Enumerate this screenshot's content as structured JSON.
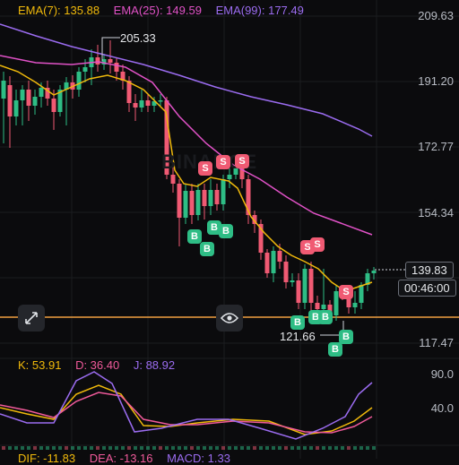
{
  "legend": {
    "ema7": "EMA(7): 135.88",
    "ema25": "EMA(25): 149.59",
    "ema99": "EMA(99): 177.49"
  },
  "price_axis": [
    "209.63",
    "191.20",
    "172.77",
    "154.34",
    "117.47"
  ],
  "current_price": {
    "price": "139.83",
    "countdown": "00:46:00"
  },
  "high_low": {
    "high": "205.33",
    "low": "121.66"
  },
  "watermark": "BINANCE",
  "kdj": {
    "k": "K: 53.91",
    "d": "D: 36.40",
    "j": "J: 88.92",
    "axis": [
      "90.0",
      "40.0"
    ]
  },
  "macd": {
    "dif": "DIF: -11.83",
    "dea": "DEA: -13.16",
    "macd": "MACD: 1.33"
  },
  "markers": {
    "s": "S",
    "b": "B"
  },
  "icons": {
    "expand": "expand-icon",
    "eye": "eye-icon"
  },
  "colors": {
    "up": "#2ebd85",
    "down": "#f05a73",
    "ema7": "#f0b90b",
    "ema25": "#e152c7",
    "ema99": "#9b6cf0",
    "hline": "#f0a040"
  }
}
